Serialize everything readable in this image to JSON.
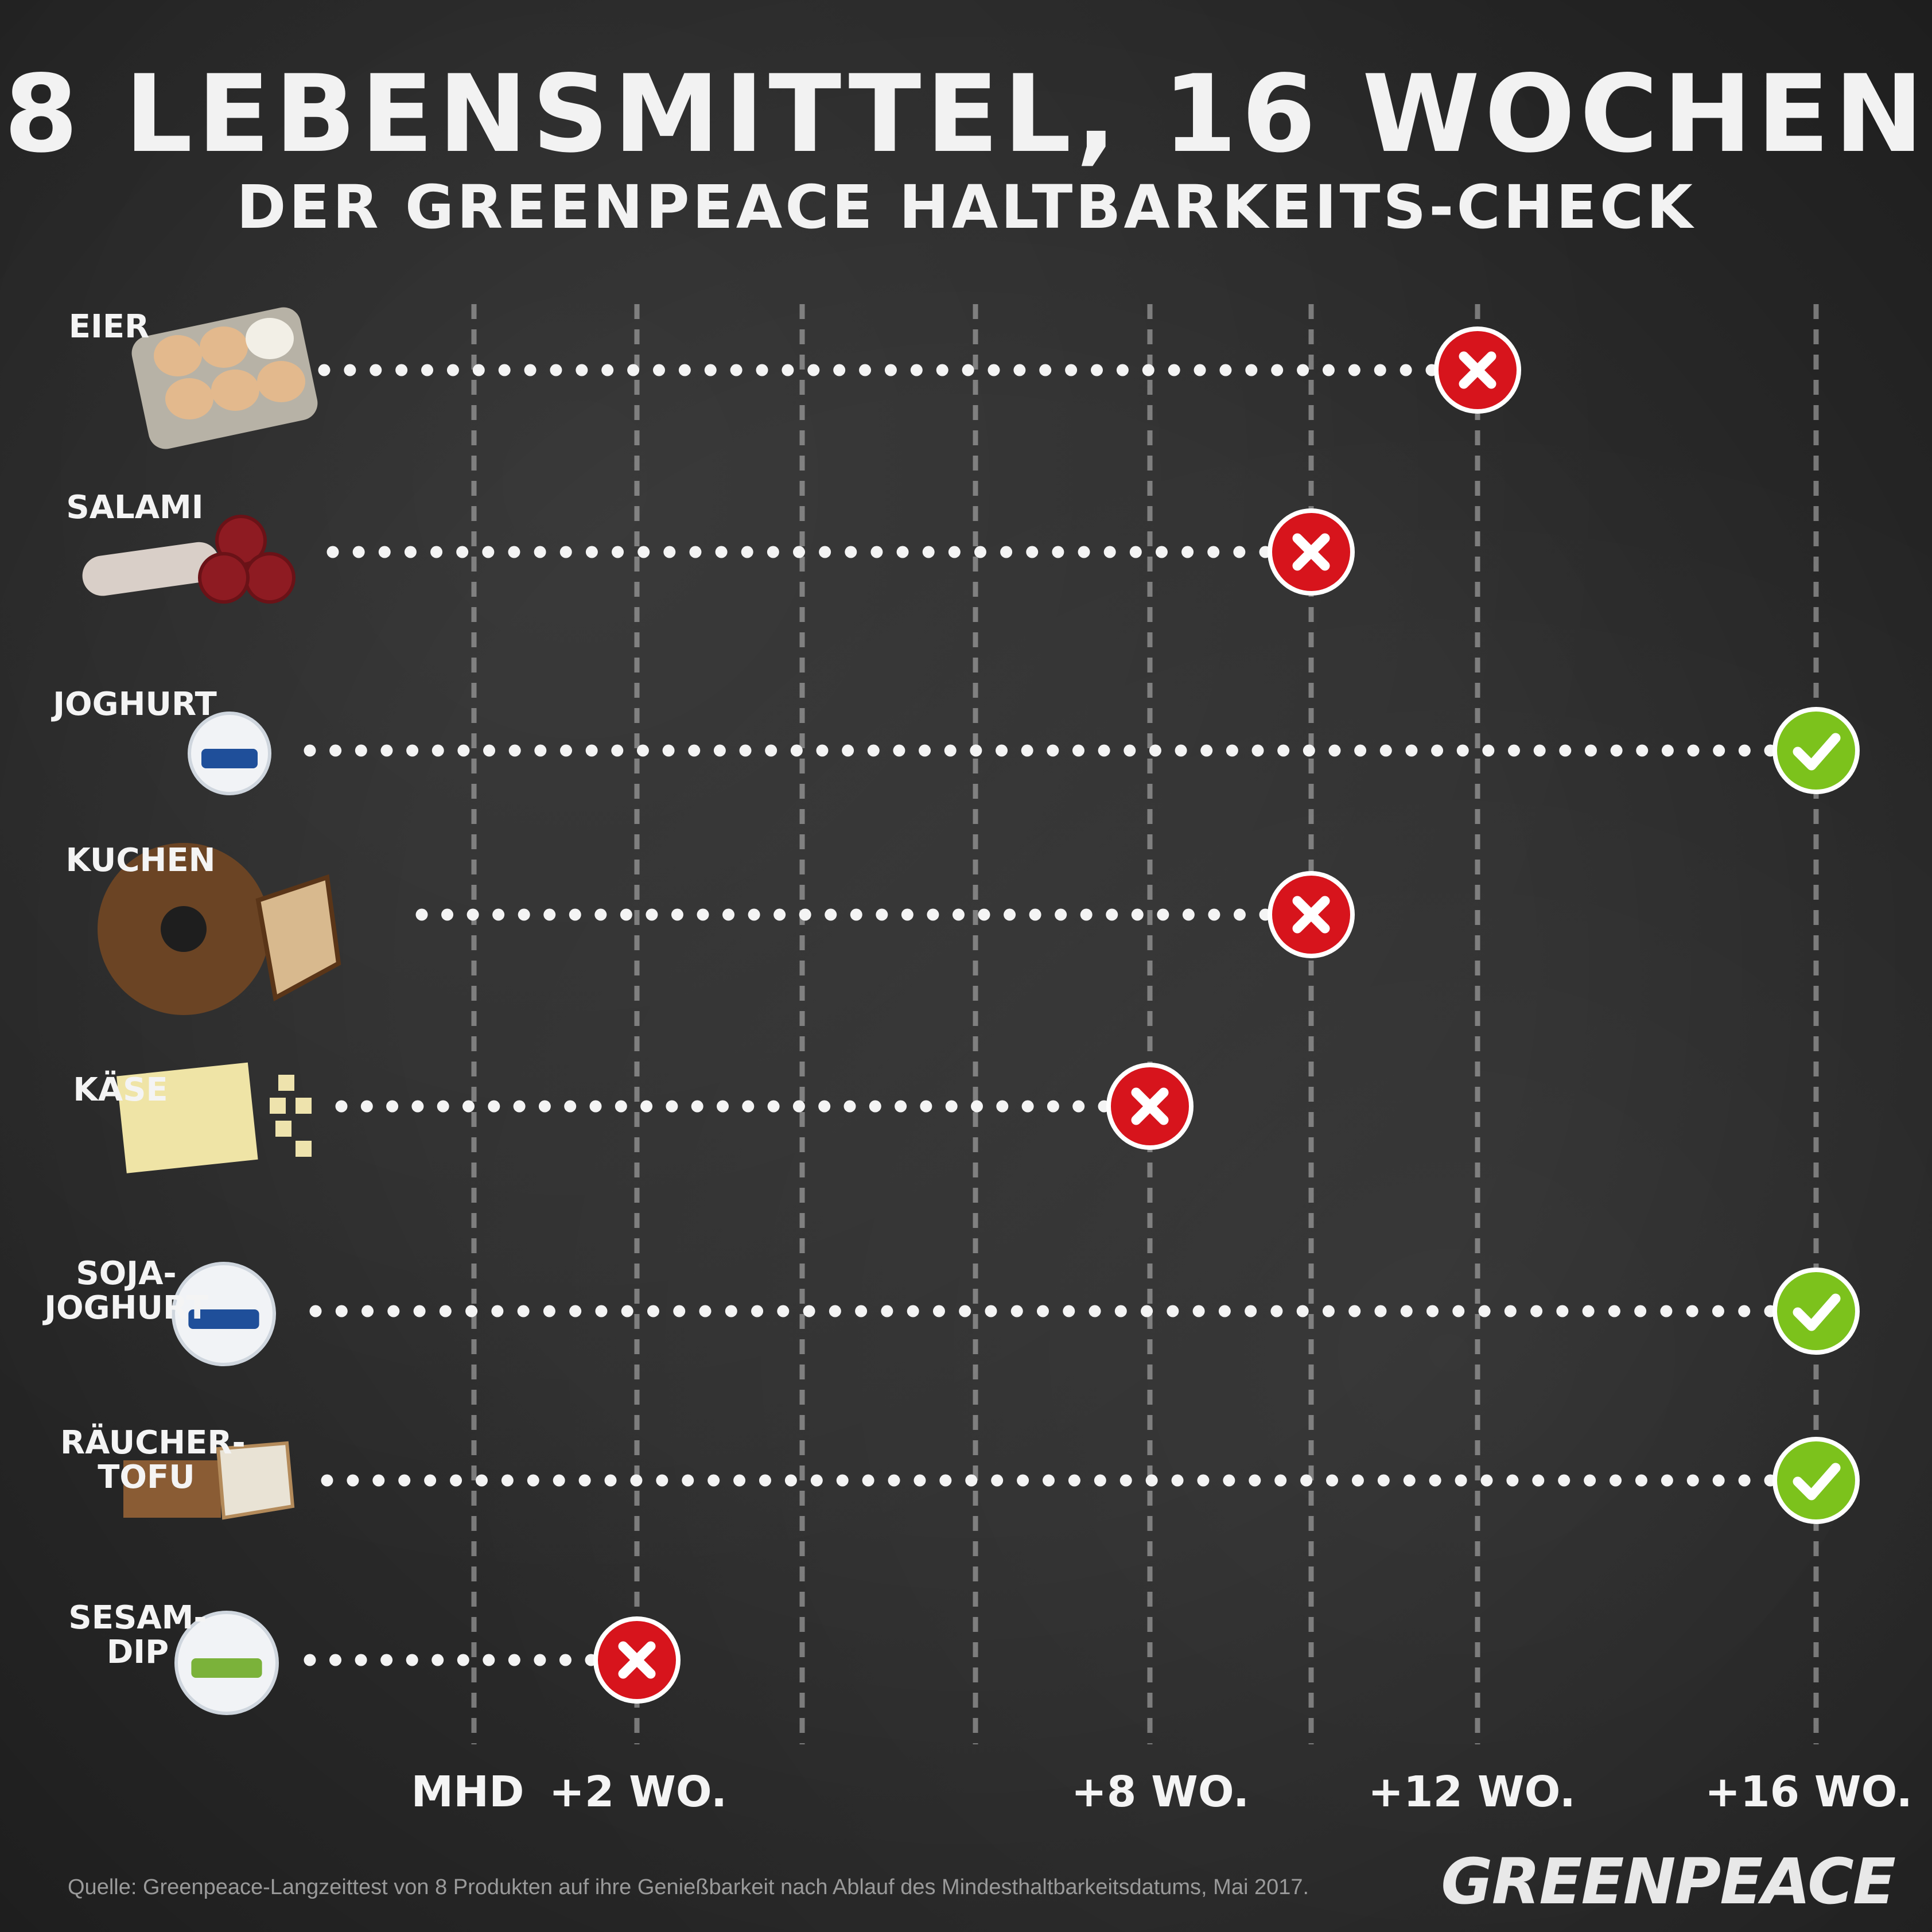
{
  "title": "8 LEBENSMITTEL, 16 WOCHEN",
  "subtitle": "DER GREENPEACE HALTBARKEITS-CHECK",
  "source": "Quelle: Greenpeace-Langzeittest von 8 Produkten auf ihre Genießbarkeit nach Ablauf des Mindesthaltbarkeitsdatums, Mai 2017.",
  "logo": "GREENPEACE",
  "colors": {
    "background": "#2e2e2e",
    "fail": "#d7141c",
    "pass": "#7cc21c",
    "dots": "#f4f4f4"
  },
  "chart_data": {
    "type": "scatter",
    "xlabel": "",
    "ylabel": "",
    "x_unit": "weeks after MHD",
    "xlim": [
      0,
      16
    ],
    "tick_labels": [
      {
        "week": 0,
        "label": "MHD"
      },
      {
        "week": 2,
        "label": "+2 WO."
      },
      {
        "week": 8,
        "label": "+8 WO."
      },
      {
        "week": 12,
        "label": "+12 WO."
      },
      {
        "week": 16,
        "label": "+16 WO."
      }
    ],
    "gridlines_weeks": [
      0,
      2,
      4,
      6,
      8,
      10,
      12,
      16
    ],
    "grid": true,
    "series": [
      {
        "name": "EIER",
        "weeks": 12,
        "result": "fail",
        "icon": "egg-carton-icon"
      },
      {
        "name": "SALAMI",
        "weeks": 10,
        "result": "fail",
        "icon": "salami-icon"
      },
      {
        "name": "JOGHURT",
        "weeks": 16,
        "result": "pass",
        "icon": "yogurt-cup-icon"
      },
      {
        "name": "KUCHEN",
        "weeks": 10,
        "result": "fail",
        "icon": "bundt-cake-icon"
      },
      {
        "name": "KÄSE",
        "weeks": 8,
        "result": "fail",
        "icon": "cheese-icon"
      },
      {
        "name": "SOJA-\nJOGHURT",
        "weeks": 16,
        "result": "pass",
        "icon": "soy-yogurt-cup-icon"
      },
      {
        "name": "RÄUCHER-\nTOFU",
        "weeks": 16,
        "result": "pass",
        "icon": "smoked-tofu-icon"
      },
      {
        "name": "SESAM-\nDIP",
        "weeks": 2,
        "result": "fail",
        "icon": "sesame-dip-tub-icon"
      }
    ]
  }
}
